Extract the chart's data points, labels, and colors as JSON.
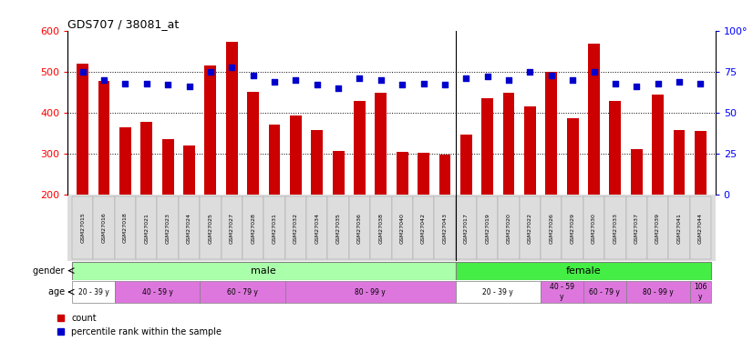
{
  "title": "GDS707 / 38081_at",
  "samples": [
    "GSM27015",
    "GSM27016",
    "GSM27018",
    "GSM27021",
    "GSM27023",
    "GSM27024",
    "GSM27025",
    "GSM27027",
    "GSM27028",
    "GSM27031",
    "GSM27032",
    "GSM27034",
    "GSM27035",
    "GSM27036",
    "GSM27038",
    "GSM27040",
    "GSM27042",
    "GSM27043",
    "GSM27017",
    "GSM27019",
    "GSM27020",
    "GSM27022",
    "GSM27026",
    "GSM27029",
    "GSM27030",
    "GSM27033",
    "GSM27037",
    "GSM27039",
    "GSM27041",
    "GSM27044"
  ],
  "counts": [
    519,
    478,
    365,
    378,
    335,
    320,
    515,
    573,
    452,
    372,
    393,
    359,
    308,
    430,
    450,
    304,
    302,
    298,
    347,
    435,
    448,
    415,
    500,
    387,
    568,
    430,
    312,
    444,
    358,
    355
  ],
  "percentiles": [
    75,
    70,
    68,
    68,
    67,
    66,
    75,
    78,
    73,
    69,
    70,
    67,
    65,
    71,
    70,
    67,
    68,
    67,
    71,
    72,
    70,
    75,
    73,
    70,
    75,
    68,
    66,
    68,
    69,
    68
  ],
  "bar_color": "#cc0000",
  "dot_color": "#0000cc",
  "ylim_left": [
    200,
    600
  ],
  "ylim_right": [
    0,
    100
  ],
  "yticks_left": [
    200,
    300,
    400,
    500,
    600
  ],
  "yticks_right": [
    0,
    25,
    50,
    75,
    100
  ],
  "gender_male_count": 18,
  "gender_female_count": 12,
  "gender_male_label": "male",
  "gender_female_label": "female",
  "gender_male_color": "#aaffaa",
  "gender_female_color": "#44ee44",
  "age_groups": [
    {
      "start": 0,
      "end": 2,
      "label": "20 - 39 y",
      "color": "#ffffff"
    },
    {
      "start": 2,
      "end": 6,
      "label": "40 - 59 y",
      "color": "#dd77dd"
    },
    {
      "start": 6,
      "end": 10,
      "label": "60 - 79 y",
      "color": "#dd77dd"
    },
    {
      "start": 10,
      "end": 18,
      "label": "80 - 99 y",
      "color": "#dd77dd"
    },
    {
      "start": 18,
      "end": 22,
      "label": "20 - 39 y",
      "color": "#ffffff"
    },
    {
      "start": 22,
      "end": 24,
      "label": "40 - 59\ny",
      "color": "#dd77dd"
    },
    {
      "start": 24,
      "end": 26,
      "label": "60 - 79 y",
      "color": "#dd77dd"
    },
    {
      "start": 26,
      "end": 29,
      "label": "80 - 99 y",
      "color": "#dd77dd"
    },
    {
      "start": 29,
      "end": 30,
      "label": "106\ny",
      "color": "#dd77dd"
    }
  ],
  "legend_count_label": "count",
  "legend_pct_label": "percentile rank within the sample",
  "bg_color": "#ffffff"
}
